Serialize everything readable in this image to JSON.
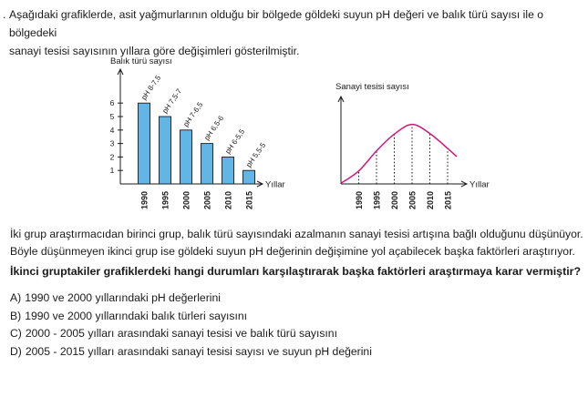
{
  "intro": {
    "bullet": ".",
    "line1": "Aşağıdaki grafiklerde, asit yağmurlarının olduğu bir bölgede göldeki suyun pH değeri ve balık türü sayısı ile o bölgedeki",
    "line2": "sanayi tesisi sayısının yıllara göre değişimleri gösterilmiştir."
  },
  "chart_data": [
    {
      "type": "bar",
      "ylabel": "Balık türü sayısı",
      "xlabel": "Yıllar",
      "categories": [
        "1990",
        "1995",
        "2000",
        "2005",
        "2010",
        "2015"
      ],
      "values": [
        6,
        5,
        4,
        3,
        2,
        1
      ],
      "data_labels": [
        "pH 8-7,5",
        "pH 7,5-7",
        "pH 7-6,5",
        "pH 6,5-6",
        "pH 6-5,5",
        "pH 5,5-5"
      ],
      "yticks": [
        1,
        2,
        3,
        4,
        5,
        6
      ],
      "ylim": [
        0,
        7
      ],
      "bar_color": "#62b6e6"
    },
    {
      "type": "line",
      "ylabel": "Sanayi tesisi sayısı",
      "xlabel": "Yıllar",
      "x": [
        "1990",
        "1995",
        "2000",
        "2005",
        "2010",
        "2015"
      ],
      "values": [
        1.0,
        2.55,
        3.85,
        4.6,
        3.9,
        2.75
      ],
      "peak": 4.65,
      "ylim": [
        0,
        6
      ],
      "line_color": "#d4147a"
    }
  ],
  "para": {
    "line1": "İki grup araştırmacıdan birinci grup, balık türü sayısındaki azalmanın sanayi tesisi artışına bağlı olduğunu düşünüyor.",
    "line2": "Böyle düşünmeyen ikinci grup ise göldeki suyun pH değerinin değişimine yol açabilecek başka faktörleri araştırıyor."
  },
  "question": "İkinci gruptakiler grafiklerdeki hangi durumları karşılaştırarak başka faktörleri araştırmaya karar vermiştir?",
  "options": [
    {
      "letter": "A)",
      "text": "1990 ve 2000 yıllarındaki pH değerlerini"
    },
    {
      "letter": "B)",
      "text": "1990 ve 2000 yıllarındaki balık türleri sayısını"
    },
    {
      "letter": "C)",
      "text": "2000 - 2005 yılları arasındaki sanayi tesisi ve balık türü sayısını"
    },
    {
      "letter": "D)",
      "text": "2005 - 2015 yılları arasındaki sanayi tesisi sayısı ve suyun pH değerini"
    }
  ]
}
